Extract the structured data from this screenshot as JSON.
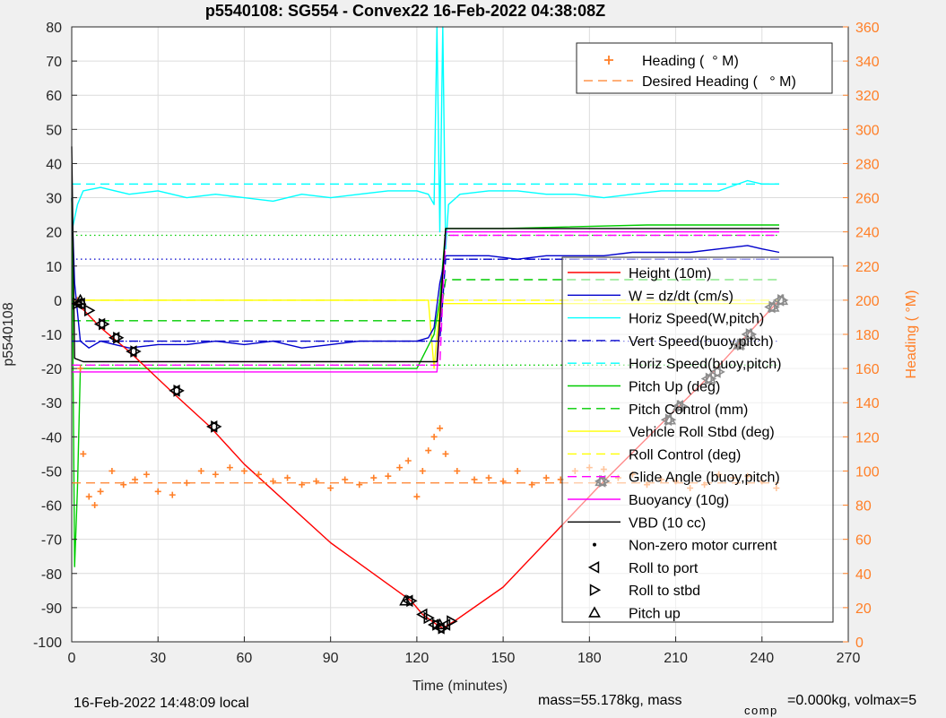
{
  "chart_data": {
    "type": "line",
    "title": "p5540108: SG554 - Convex22 16-Feb-2022 04:38:08Z",
    "xlabel": "Time (minutes)",
    "ylabel": "p5540108",
    "y2label": "Heading ( °M)",
    "xlim": [
      0,
      270
    ],
    "ylim": [
      -100,
      80
    ],
    "y2lim": [
      0,
      360
    ],
    "xticks": [
      0,
      30,
      60,
      90,
      120,
      150,
      180,
      210,
      240,
      270
    ],
    "yticks": [
      -100,
      -90,
      -80,
      -70,
      -60,
      -50,
      -40,
      -30,
      -20,
      -10,
      0,
      10,
      20,
      30,
      40,
      50,
      60,
      70,
      80
    ],
    "y2ticks": [
      0,
      20,
      40,
      60,
      80,
      100,
      120,
      140,
      160,
      180,
      200,
      220,
      240,
      260,
      280,
      300,
      320,
      340,
      360
    ],
    "grid": true,
    "colors": {
      "height": "#ff0000",
      "w": "#0000cc",
      "horiz_speed": "#00ffff",
      "pitch": "#00cc00",
      "roll": "#ffff00",
      "buoyancy": "#ff00ff",
      "vbd": "#000000",
      "heading": "#ff7f27",
      "axis_right": "#ff7f27"
    },
    "legend_right": [
      {
        "label": "Height (10m)",
        "style": "solid",
        "color": "#ff0000"
      },
      {
        "label": "W = dz/dt (cm/s)",
        "style": "solid",
        "color": "#0000cc"
      },
      {
        "label": "Horiz Speed(W,pitch)",
        "style": "solid",
        "color": "#00ffff"
      },
      {
        "label": "Vert Speed(buoy,pitch)",
        "style": "dash",
        "color": "#0000cc"
      },
      {
        "label": "Horiz Speed(buoy,pitch)",
        "style": "dash",
        "color": "#00ffff"
      },
      {
        "label": "Pitch Up (deg)",
        "style": "solid",
        "color": "#00cc00"
      },
      {
        "label": "Pitch Control (mm)",
        "style": "dash",
        "color": "#00cc00"
      },
      {
        "label": "Vehicle Roll Stbd (deg)",
        "style": "solid",
        "color": "#ffff00"
      },
      {
        "label": "Roll Control (deg)",
        "style": "dash",
        "color": "#ffff00"
      },
      {
        "label": "Glide Angle (buoy,pitch)",
        "style": "dash",
        "color": "#ff00ff"
      },
      {
        "label": "Buoyancy (10g)",
        "style": "solid",
        "color": "#ff00ff"
      },
      {
        "label": "VBD (10 cc)",
        "style": "solid",
        "color": "#000000"
      },
      {
        "label": "Non-zero motor current",
        "style": "dot",
        "color": "#000000"
      },
      {
        "label": "Roll to port",
        "style": "tri-left",
        "color": "#000000"
      },
      {
        "label": "Roll to stbd",
        "style": "tri-right",
        "color": "#000000"
      },
      {
        "label": "Pitch up",
        "style": "tri-up",
        "color": "#000000"
      }
    ],
    "legend_heading": [
      {
        "label": "Heading (  ° M)",
        "style": "plus",
        "color": "#ff7f27"
      },
      {
        "label": "Desired Heading (   ° M)",
        "style": "dash",
        "color": "#ff7f27"
      }
    ],
    "series": [
      {
        "name": "Height (10m)",
        "x": [
          0,
          2,
          10,
          20,
          35,
          48,
          60,
          90,
          118,
          122,
          127,
          129,
          131,
          133,
          150,
          185,
          210,
          222,
          235,
          246
        ],
        "y": [
          -1,
          -1,
          -8,
          -15,
          -27,
          -37,
          -48,
          -71,
          -88,
          -92,
          -95,
          -96,
          -95,
          -94,
          -84,
          -53,
          -32,
          -22,
          -10,
          0
        ]
      },
      {
        "name": "W = dz/dt (cm/s)",
        "x": [
          0,
          1,
          3,
          6,
          10,
          15,
          20,
          30,
          40,
          50,
          60,
          70,
          80,
          90,
          100,
          110,
          120,
          124,
          126,
          128,
          130,
          135,
          145,
          155,
          165,
          175,
          185,
          195,
          205,
          215,
          225,
          235,
          240,
          246
        ],
        "y": [
          30,
          5,
          -12,
          -14,
          -12,
          -13,
          -14,
          -13,
          -13,
          -12,
          -13,
          -12,
          -14,
          -13,
          -12,
          -12,
          -12,
          -11,
          -8,
          5,
          13,
          13,
          13,
          12,
          13,
          13,
          13,
          14,
          14,
          14,
          15,
          16,
          15,
          14
        ]
      },
      {
        "name": "Horiz Speed(W,pitch)",
        "x": [
          0,
          2,
          4,
          10,
          20,
          30,
          40,
          50,
          60,
          70,
          80,
          90,
          100,
          110,
          120,
          124,
          126,
          127,
          128,
          129,
          130,
          131,
          135,
          145,
          155,
          165,
          175,
          185,
          195,
          205,
          215,
          225,
          235,
          240,
          246
        ],
        "y": [
          20,
          28,
          32,
          33,
          31,
          32,
          30,
          31,
          30,
          29,
          31,
          30,
          31,
          32,
          32,
          31,
          28,
          80,
          20,
          80,
          15,
          28,
          31,
          32,
          32,
          31,
          31,
          30,
          31,
          32,
          32,
          32,
          35,
          34,
          34
        ]
      },
      {
        "name": "Vert Speed(buoy,pitch)",
        "x": [
          0,
          3,
          128,
          130,
          246
        ],
        "y": [
          -12,
          -12,
          -12,
          12,
          12
        ]
      },
      {
        "name": "Horiz Speed(buoy,pitch)",
        "x": [
          0,
          3,
          128,
          130,
          246
        ],
        "y": [
          34,
          34,
          34,
          34,
          34
        ]
      },
      {
        "name": "Pitch Up (deg)",
        "x": [
          0,
          1,
          2,
          3,
          5,
          10,
          30,
          60,
          90,
          120,
          126,
          128,
          130,
          150,
          200,
          246
        ],
        "y": [
          30,
          -78,
          -55,
          -20,
          -20,
          -20,
          -20,
          -20,
          -20,
          -20,
          -10,
          0,
          21,
          21,
          22,
          22
        ]
      },
      {
        "name": "Pitch Control (mm)",
        "x": [
          0,
          4,
          128,
          130,
          246
        ],
        "y": [
          -6,
          -6,
          -6,
          6,
          6
        ]
      },
      {
        "name": "Vehicle Roll Stbd (deg)",
        "x": [
          0,
          3,
          10,
          40,
          90,
          124,
          126,
          128,
          130,
          150,
          246
        ],
        "y": [
          0,
          0,
          0,
          0,
          0,
          0,
          -20,
          -1,
          -1,
          -1,
          -1
        ]
      },
      {
        "name": "Roll Control (deg)",
        "x": [
          0,
          246
        ],
        "y": [
          0,
          0
        ]
      },
      {
        "name": "Glide Angle (buoy,pitch)",
        "x": [
          0,
          4,
          128,
          130,
          246
        ],
        "y": [
          -19,
          -19,
          -19,
          19,
          19
        ]
      },
      {
        "name": "Buoyancy (10g)",
        "x": [
          0,
          4,
          127,
          130,
          246
        ],
        "y": [
          -21,
          -21,
          -21,
          20,
          20
        ]
      },
      {
        "name": "VBD (10 cc)",
        "x": [
          0,
          1,
          4,
          127,
          130,
          246
        ],
        "y": [
          45,
          -17,
          -18,
          -18,
          21,
          21
        ]
      },
      {
        "name": "Heading ( °M)",
        "axis": "right",
        "x": [
          2,
          3,
          4,
          6,
          8,
          10,
          14,
          18,
          22,
          26,
          30,
          35,
          40,
          45,
          50,
          55,
          60,
          65,
          70,
          75,
          80,
          85,
          90,
          95,
          100,
          105,
          110,
          114,
          117,
          120,
          122,
          124,
          126,
          128,
          130,
          134,
          140,
          145,
          150,
          155,
          160,
          165,
          170,
          175,
          180,
          185,
          190,
          195,
          200,
          205,
          210,
          215,
          220,
          225,
          230,
          235,
          240,
          245
        ],
        "y": [
          200,
          160,
          110,
          85,
          80,
          88,
          100,
          92,
          95,
          98,
          88,
          86,
          93,
          100,
          98,
          102,
          100,
          98,
          94,
          96,
          92,
          94,
          90,
          95,
          92,
          96,
          97,
          102,
          106,
          85,
          100,
          112,
          120,
          125,
          110,
          100,
          95,
          96,
          94,
          100,
          92,
          96,
          95,
          100,
          102,
          101,
          96,
          98,
          92,
          95,
          94,
          90,
          92,
          98,
          96,
          97,
          94,
          90
        ]
      },
      {
        "name": "Desired Heading (  ° M)",
        "axis": "right",
        "x": [
          0,
          246
        ],
        "y": [
          93,
          93
        ]
      }
    ],
    "markers": {
      "roll_to_port": {
        "x": [
          2,
          3,
          10,
          15,
          21,
          36,
          49,
          117,
          122,
          126,
          128,
          130,
          184,
          207,
          211,
          221,
          224,
          232,
          235,
          243,
          246
        ],
        "y": [
          -1,
          -1,
          -7,
          -11,
          -15,
          -26.5,
          -37,
          -88,
          -92,
          -95,
          -96,
          -95,
          -53,
          -35,
          -31,
          -23,
          -21,
          -13,
          -10,
          -2,
          0
        ]
      },
      "roll_to_stbd": {
        "x": [
          2,
          6,
          11,
          16,
          22,
          37,
          50,
          118,
          124,
          127,
          129,
          132,
          185,
          208,
          212,
          222,
          225,
          233,
          236,
          244,
          247
        ],
        "y": [
          -1,
          -3,
          -7,
          -11,
          -15,
          -26.5,
          -37,
          -88,
          -93,
          -95,
          -96,
          -94,
          -53,
          -35,
          -31,
          -23,
          -21,
          -13,
          -10,
          -2,
          0
        ]
      },
      "pitch_up": {
        "x": [
          3,
          116,
          128,
          184,
          208,
          211,
          222,
          232,
          236,
          244,
          247
        ],
        "y": [
          0,
          -88,
          -95,
          -53,
          -35,
          -31,
          -23,
          -13,
          -10,
          -2,
          0
        ]
      }
    },
    "reference_lines": [
      {
        "y": 12,
        "style": "dot",
        "color": "#0000cc",
        "x": [
          0,
          246
        ]
      },
      {
        "y": -12,
        "style": "dot",
        "color": "#0000cc",
        "x": [
          0,
          246
        ]
      },
      {
        "y": 19,
        "style": "dot",
        "color": "#00cc00",
        "x": [
          0,
          246
        ]
      },
      {
        "y": -19,
        "style": "dot",
        "color": "#00cc00",
        "x": [
          0,
          246
        ]
      }
    ]
  },
  "footer": {
    "local_time": "16-Feb-2022 14:48:09 local",
    "mass": "mass=55.178kg, mass",
    "comp": "comp",
    "volmax": "=0.000kg, volmax=5"
  }
}
